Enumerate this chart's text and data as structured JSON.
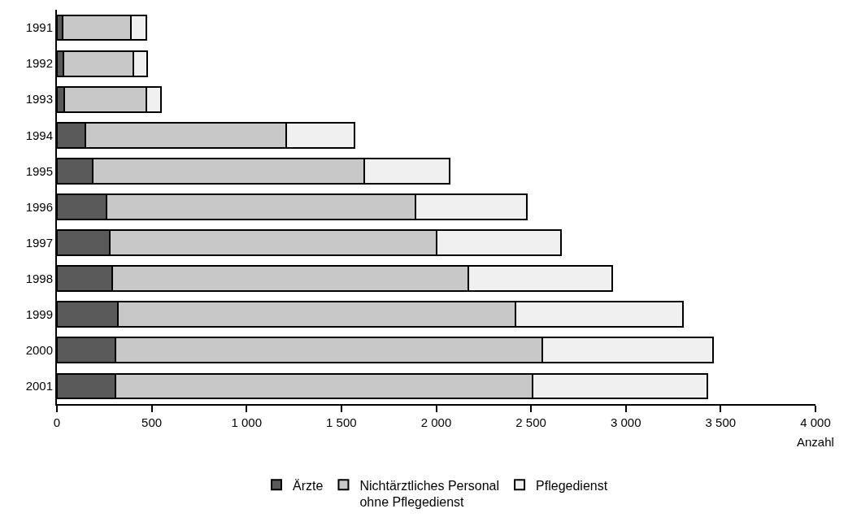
{
  "chart_data": {
    "type": "bar",
    "orientation": "horizontal",
    "stacked": true,
    "xlabel": "Anzahl",
    "categories": [
      "1991",
      "1992",
      "1993",
      "1994",
      "1995",
      "1996",
      "1997",
      "1998",
      "1999",
      "2000",
      "2001"
    ],
    "series": [
      {
        "name": "Ärzte",
        "color": "#5a5a5a",
        "values": [
          30,
          35,
          40,
          150,
          190,
          260,
          280,
          290,
          320,
          310,
          310
        ]
      },
      {
        "name": "Nichtärztliches Personal\nohne Pflegedienst",
        "color": "#c8c8c8",
        "values": [
          360,
          370,
          430,
          1060,
          1430,
          1630,
          1720,
          1880,
          2100,
          2250,
          2200
        ]
      },
      {
        "name": "Pflegedienst",
        "color": "#f0f0f0",
        "values": [
          80,
          70,
          80,
          360,
          450,
          590,
          660,
          760,
          880,
          900,
          920
        ]
      }
    ],
    "xlim": [
      0,
      4000
    ],
    "xticks": [
      0,
      500,
      {
        "value": 1000,
        "label": "1 000"
      },
      {
        "value": 1500,
        "label": "1 500"
      },
      {
        "value": 2000,
        "label": "2 000"
      },
      {
        "value": 2500,
        "label": "2 500"
      },
      {
        "value": 3000,
        "label": "3 000"
      },
      {
        "value": 3500,
        "label": "3 500"
      },
      {
        "value": 4000,
        "label": "4 000"
      }
    ],
    "legend": "bottom"
  }
}
